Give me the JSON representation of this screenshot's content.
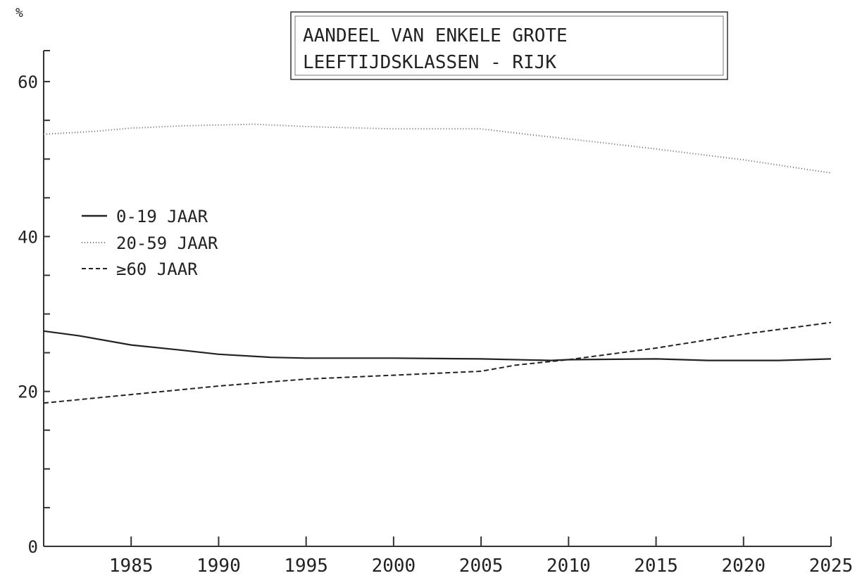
{
  "chart_data": {
    "type": "line",
    "title_lines": [
      "AANDEEL VAN ENKELE GROTE",
      "LEEFTIJDSKLASSEN - RIJK"
    ],
    "ylabel": "%",
    "xlabel": "",
    "xlim": [
      1980,
      2025
    ],
    "ylim": [
      0,
      64
    ],
    "x_ticks": [
      1985,
      1990,
      1995,
      2000,
      2005,
      2010,
      2015,
      2020,
      2025
    ],
    "y_tick_labels": [
      0,
      20,
      40,
      60
    ],
    "y_minor_ticks": [
      5,
      10,
      15,
      20,
      25,
      30,
      35,
      40,
      45,
      50,
      55,
      60,
      64
    ],
    "grid": false,
    "legend_position": "left",
    "series": [
      {
        "name": "0-19 JAAR",
        "style": "solid",
        "points": [
          [
            1980,
            27.8
          ],
          [
            1982,
            27.2
          ],
          [
            1985,
            26.0
          ],
          [
            1988,
            25.3
          ],
          [
            1990,
            24.8
          ],
          [
            1993,
            24.4
          ],
          [
            1995,
            24.3
          ],
          [
            2000,
            24.3
          ],
          [
            2005,
            24.2
          ],
          [
            2009,
            24.0
          ],
          [
            2010,
            24.1
          ],
          [
            2015,
            24.2
          ],
          [
            2018,
            24.0
          ],
          [
            2022,
            24.0
          ],
          [
            2025,
            24.2
          ]
        ]
      },
      {
        "name": "20-59 JAAR",
        "style": "dotted",
        "points": [
          [
            1980,
            53.2
          ],
          [
            1983,
            53.6
          ],
          [
            1985,
            54.0
          ],
          [
            1988,
            54.3
          ],
          [
            1990,
            54.4
          ],
          [
            1992,
            54.5
          ],
          [
            1995,
            54.2
          ],
          [
            2000,
            53.9
          ],
          [
            2005,
            53.9
          ],
          [
            2008,
            53.1
          ],
          [
            2010,
            52.6
          ],
          [
            2012,
            52.1
          ],
          [
            2015,
            51.3
          ],
          [
            2020,
            49.9
          ],
          [
            2025,
            48.2
          ]
        ]
      },
      {
        "name": "≥60 JAAR",
        "style": "dashed",
        "points": [
          [
            1980,
            18.5
          ],
          [
            1985,
            19.6
          ],
          [
            1990,
            20.7
          ],
          [
            1995,
            21.6
          ],
          [
            2000,
            22.1
          ],
          [
            2005,
            22.6
          ],
          [
            2007,
            23.4
          ],
          [
            2010,
            24.1
          ],
          [
            2015,
            25.6
          ],
          [
            2020,
            27.4
          ],
          [
            2025,
            28.9
          ]
        ]
      }
    ]
  },
  "colors": {
    "line": "#222222",
    "axis": "#333333",
    "dotted": "#666666"
  }
}
